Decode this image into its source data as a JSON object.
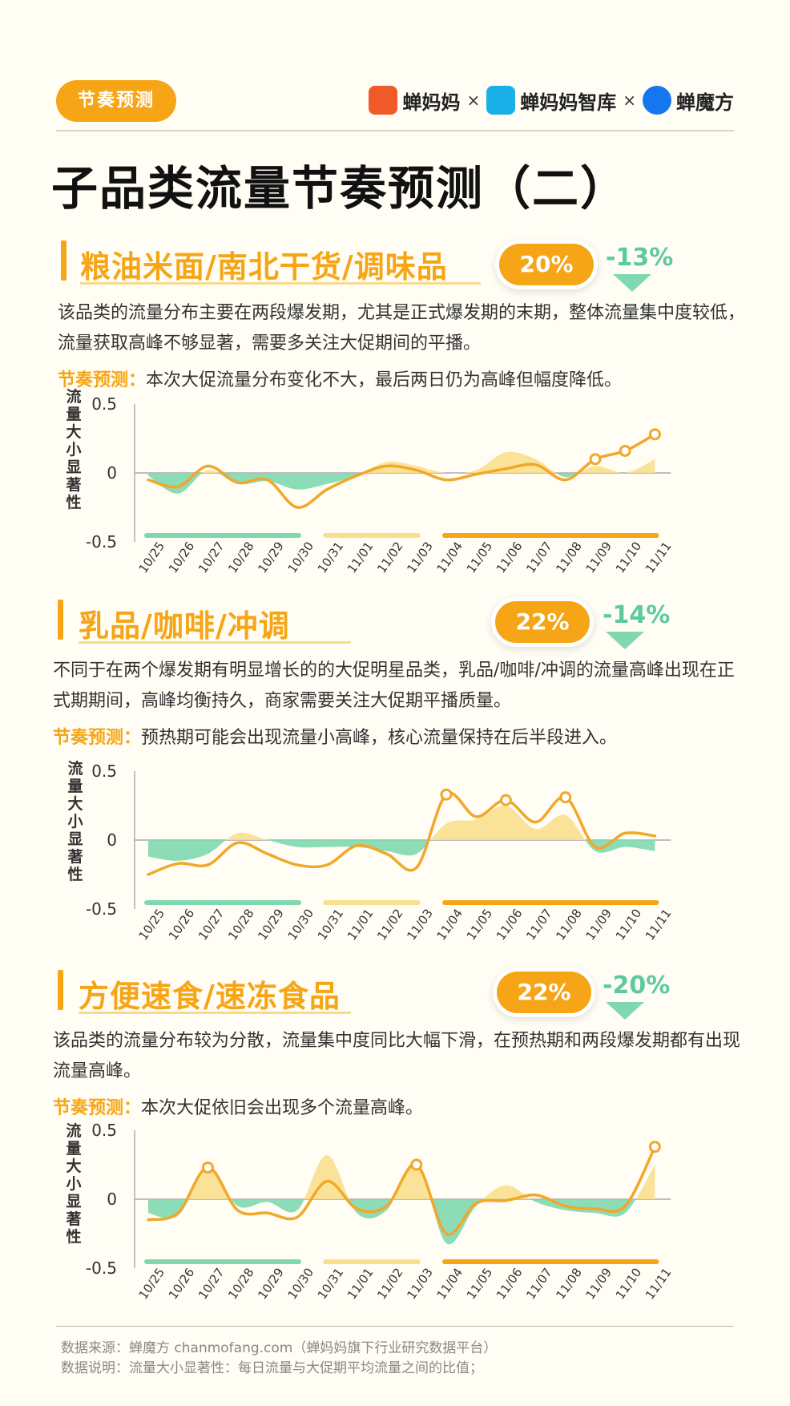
{
  "header": {
    "tag": "节奏预测",
    "logos": [
      {
        "name": "蝉妈妈",
        "color": "#f05a28"
      },
      {
        "name": "蝉妈妈智库",
        "color": "#1ab0e8"
      },
      {
        "name": "蝉魔方",
        "color": "#1477f0"
      }
    ],
    "separator": "×",
    "title": "子品类流量节奏预测（二）"
  },
  "sections": [
    {
      "title": "粮油米面/南北干货/调味品",
      "share": "20%",
      "delta": "-13%",
      "desc": "该品类的流量分布主要在两段爆发期，尤其是正式爆发期的末期，整体流量集中度较低，流量获取高峰不够显著，需要多关注大促期间的平播。",
      "pred_label": "节奏预测：",
      "pred_text": "本次大促流量分布变化不大，最后两日仍为高峰但幅度降低。"
    },
    {
      "title": "乳品/咖啡/冲调",
      "share": "22%",
      "delta": "-14%",
      "desc": "不同于在两个爆发期有明显增长的的大促明星品类，乳品/咖啡/冲调的流量高峰出现在正式期期间，高峰均衡持久，商家需要关注大促期平播质量。",
      "pred_label": "节奏预测：",
      "pred_text": "预热期可能会出现流量小高峰，核心流量保持在后半段进入。"
    },
    {
      "title": "方便速食/速冻食品",
      "share": "22%",
      "delta": "-20%",
      "desc": "该品类的流量分布较为分散，流量集中度同比大幅下滑，在预热期和两段爆发期都有出现流量高峰。",
      "pred_label": "节奏预测：",
      "pred_text": "本次大促依旧会出现多个流量高峰。"
    }
  ],
  "chart_data": [
    {
      "type": "line",
      "ylabel": "流量大小显著性",
      "ylim": [
        -0.5,
        0.5
      ],
      "yticks": [
        "0.5",
        "0",
        "-0.5"
      ],
      "categories": [
        "10/25",
        "10/26",
        "10/27",
        "10/28",
        "10/29",
        "10/30",
        "10/31",
        "11/01",
        "11/02",
        "11/03",
        "11/04",
        "11/05",
        "11/06",
        "11/07",
        "11/08",
        "11/09",
        "11/10",
        "11/11"
      ],
      "series": [
        {
          "kind": "area",
          "values": [
            -0.02,
            -0.15,
            0.02,
            -0.08,
            -0.06,
            -0.12,
            -0.08,
            -0.02,
            0.08,
            0.05,
            0.0,
            0.02,
            0.15,
            0.1,
            -0.03,
            0.05,
            0.0,
            0.1
          ]
        },
        {
          "kind": "line",
          "values": [
            -0.05,
            -0.1,
            0.05,
            -0.07,
            -0.05,
            -0.25,
            -0.12,
            -0.02,
            0.05,
            0.02,
            -0.05,
            -0.01,
            0.03,
            0.06,
            -0.05,
            0.1,
            0.16,
            0.28
          ],
          "markers": [
            15,
            16,
            17
          ]
        }
      ],
      "phases": [
        {
          "from": "10/25",
          "to": "10/30",
          "color": "#7fd8b0"
        },
        {
          "from": "10/31",
          "to": "11/03",
          "color": "#f9e08e"
        },
        {
          "from": "11/04",
          "to": "11/11",
          "color": "#f6a516"
        }
      ]
    },
    {
      "type": "line",
      "ylabel": "流量大小显著性",
      "ylim": [
        -0.5,
        0.5
      ],
      "yticks": [
        "0.5",
        "0",
        "-0.5"
      ],
      "categories": [
        "10/25",
        "10/26",
        "10/27",
        "10/28",
        "10/29",
        "10/30",
        "10/31",
        "11/01",
        "11/02",
        "11/03",
        "11/04",
        "11/05",
        "11/06",
        "11/07",
        "11/08",
        "11/09",
        "11/10",
        "11/11"
      ],
      "series": [
        {
          "kind": "area",
          "values": [
            -0.12,
            -0.15,
            -0.1,
            0.05,
            0.0,
            -0.05,
            -0.05,
            -0.05,
            -0.08,
            -0.1,
            0.12,
            0.15,
            0.25,
            0.08,
            0.18,
            -0.08,
            -0.05,
            -0.08
          ]
        },
        {
          "kind": "line",
          "values": [
            -0.25,
            -0.17,
            -0.18,
            -0.02,
            -0.1,
            -0.18,
            -0.18,
            -0.04,
            -0.1,
            -0.2,
            0.33,
            0.17,
            0.29,
            0.13,
            0.31,
            -0.05,
            0.05,
            0.03
          ],
          "markers": [
            10,
            12,
            14
          ]
        }
      ],
      "phases": [
        {
          "from": "10/25",
          "to": "10/30",
          "color": "#7fd8b0"
        },
        {
          "from": "10/31",
          "to": "11/03",
          "color": "#f9e08e"
        },
        {
          "from": "11/04",
          "to": "11/11",
          "color": "#f6a516"
        }
      ]
    },
    {
      "type": "line",
      "ylabel": "流量大小显著性",
      "ylim": [
        -0.5,
        0.5
      ],
      "yticks": [
        "0.5",
        "0",
        "-0.5"
      ],
      "categories": [
        "10/25",
        "10/26",
        "10/27",
        "10/28",
        "10/29",
        "10/30",
        "10/31",
        "11/01",
        "11/02",
        "11/03",
        "11/04",
        "11/05",
        "11/06",
        "11/07",
        "11/08",
        "11/09",
        "11/10",
        "11/11"
      ],
      "series": [
        {
          "kind": "area",
          "values": [
            -0.1,
            -0.12,
            0.22,
            -0.05,
            -0.02,
            -0.08,
            0.32,
            -0.1,
            -0.08,
            0.28,
            -0.32,
            -0.05,
            0.1,
            -0.02,
            -0.08,
            -0.1,
            -0.1,
            0.25
          ]
        },
        {
          "kind": "line",
          "values": [
            -0.15,
            -0.1,
            0.23,
            -0.08,
            -0.1,
            -0.13,
            0.13,
            -0.07,
            -0.05,
            0.25,
            -0.25,
            -0.03,
            -0.01,
            0.03,
            -0.05,
            -0.07,
            -0.05,
            0.38
          ],
          "markers": [
            2,
            9,
            17
          ]
        }
      ],
      "phases": [
        {
          "from": "10/25",
          "to": "10/30",
          "color": "#7fd8b0"
        },
        {
          "from": "10/31",
          "to": "11/03",
          "color": "#f9e08e"
        },
        {
          "from": "11/04",
          "to": "11/11",
          "color": "#f6a516"
        }
      ]
    }
  ],
  "footer": {
    "source": "数据来源：蝉魔方 chanmofang.com（蝉妈妈旗下行业研究数据平台）",
    "note": "数据说明：流量大小显著性：每日流量与大促期平均流量之间的比值；"
  }
}
